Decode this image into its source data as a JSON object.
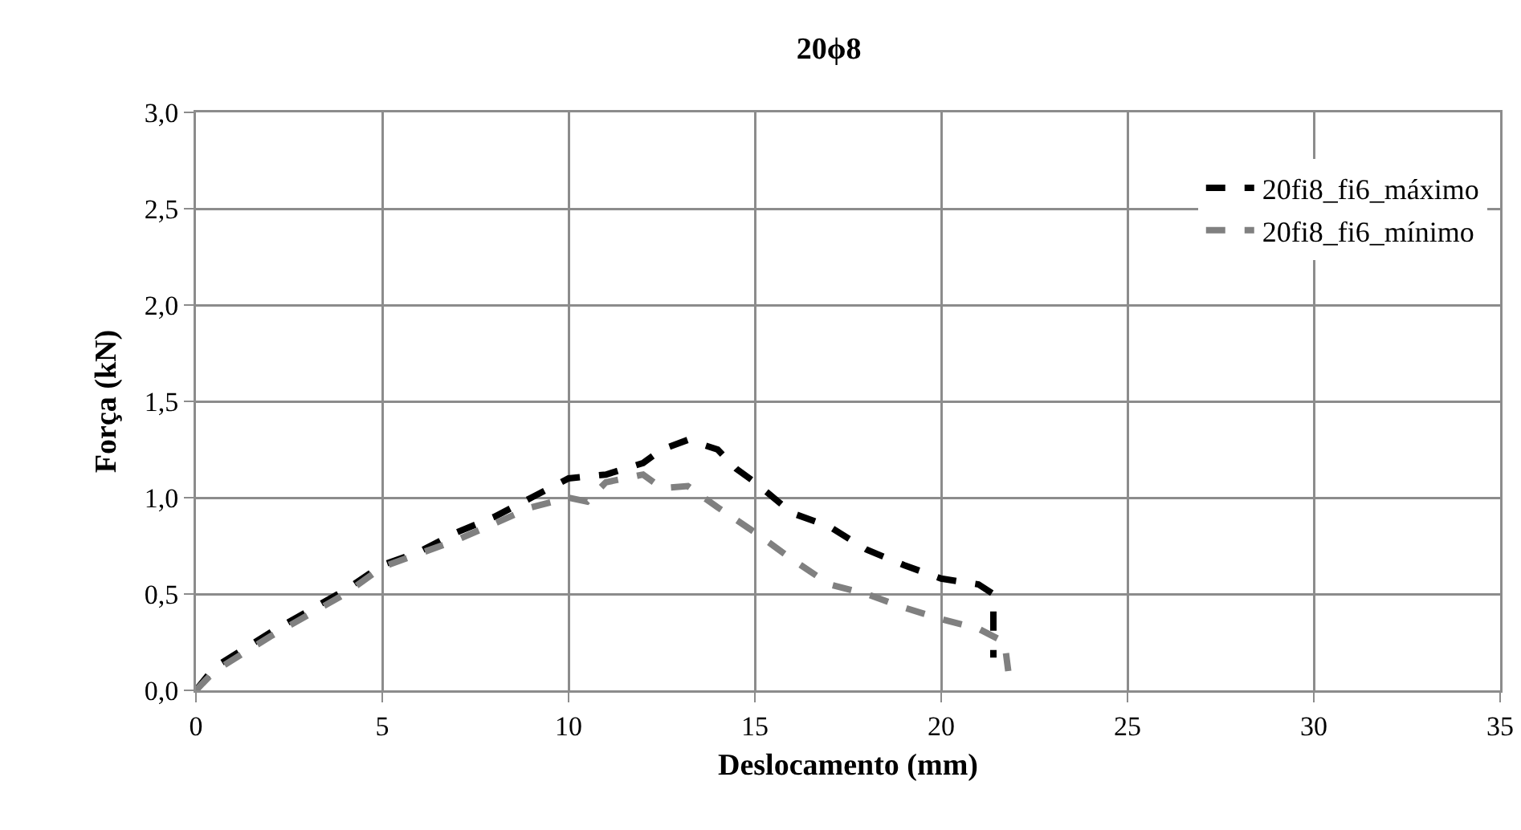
{
  "chart_data": {
    "type": "line",
    "title": "20ϕ8",
    "xlabel": "Deslocamento (mm)",
    "ylabel": "Força (kN)",
    "xlim": [
      0,
      35
    ],
    "xticks": [
      0,
      5,
      10,
      15,
      20,
      25,
      30,
      35
    ],
    "ylim": [
      0,
      3
    ],
    "yticks": [
      {
        "value": 0,
        "label": "0,0"
      },
      {
        "value": 0.5,
        "label": "0,5"
      },
      {
        "value": 1,
        "label": "1,0"
      },
      {
        "value": 1.5,
        "label": "1,5"
      },
      {
        "value": 2,
        "label": "2,0"
      },
      {
        "value": 2.5,
        "label": "2,5"
      },
      {
        "value": 3,
        "label": "3,0"
      }
    ],
    "grid": true,
    "legend": "top right",
    "line_style": "dashed",
    "marker": "none",
    "series": [
      {
        "name": "20fi8_fi6_máximo",
        "color": "#000000",
        "x": [
          0,
          0.5,
          2,
          4,
          5,
          6,
          7,
          8,
          9,
          10,
          11,
          12,
          12.5,
          13.2,
          14,
          14.5,
          15,
          16,
          17,
          18,
          19,
          20,
          21,
          21.4,
          21.4
        ],
        "values": [
          0,
          0.12,
          0.3,
          0.52,
          0.65,
          0.72,
          0.82,
          0.9,
          1.0,
          1.1,
          1.12,
          1.18,
          1.25,
          1.3,
          1.25,
          1.15,
          1.08,
          0.92,
          0.85,
          0.73,
          0.65,
          0.58,
          0.55,
          0.5,
          0.17
        ]
      },
      {
        "name": "20fi8_fi6_mínimo",
        "color": "#808080",
        "x": [
          0,
          0.5,
          2,
          4,
          5,
          7,
          9,
          10,
          10.5,
          11,
          12,
          12.5,
          13.2,
          14,
          15,
          16,
          17,
          18,
          19,
          20,
          21,
          21.7,
          21.8
        ],
        "values": [
          0,
          0.1,
          0.28,
          0.5,
          0.64,
          0.78,
          0.95,
          1.0,
          0.98,
          1.08,
          1.12,
          1.05,
          1.06,
          0.95,
          0.82,
          0.68,
          0.55,
          0.5,
          0.43,
          0.37,
          0.32,
          0.25,
          0.1
        ]
      }
    ]
  }
}
